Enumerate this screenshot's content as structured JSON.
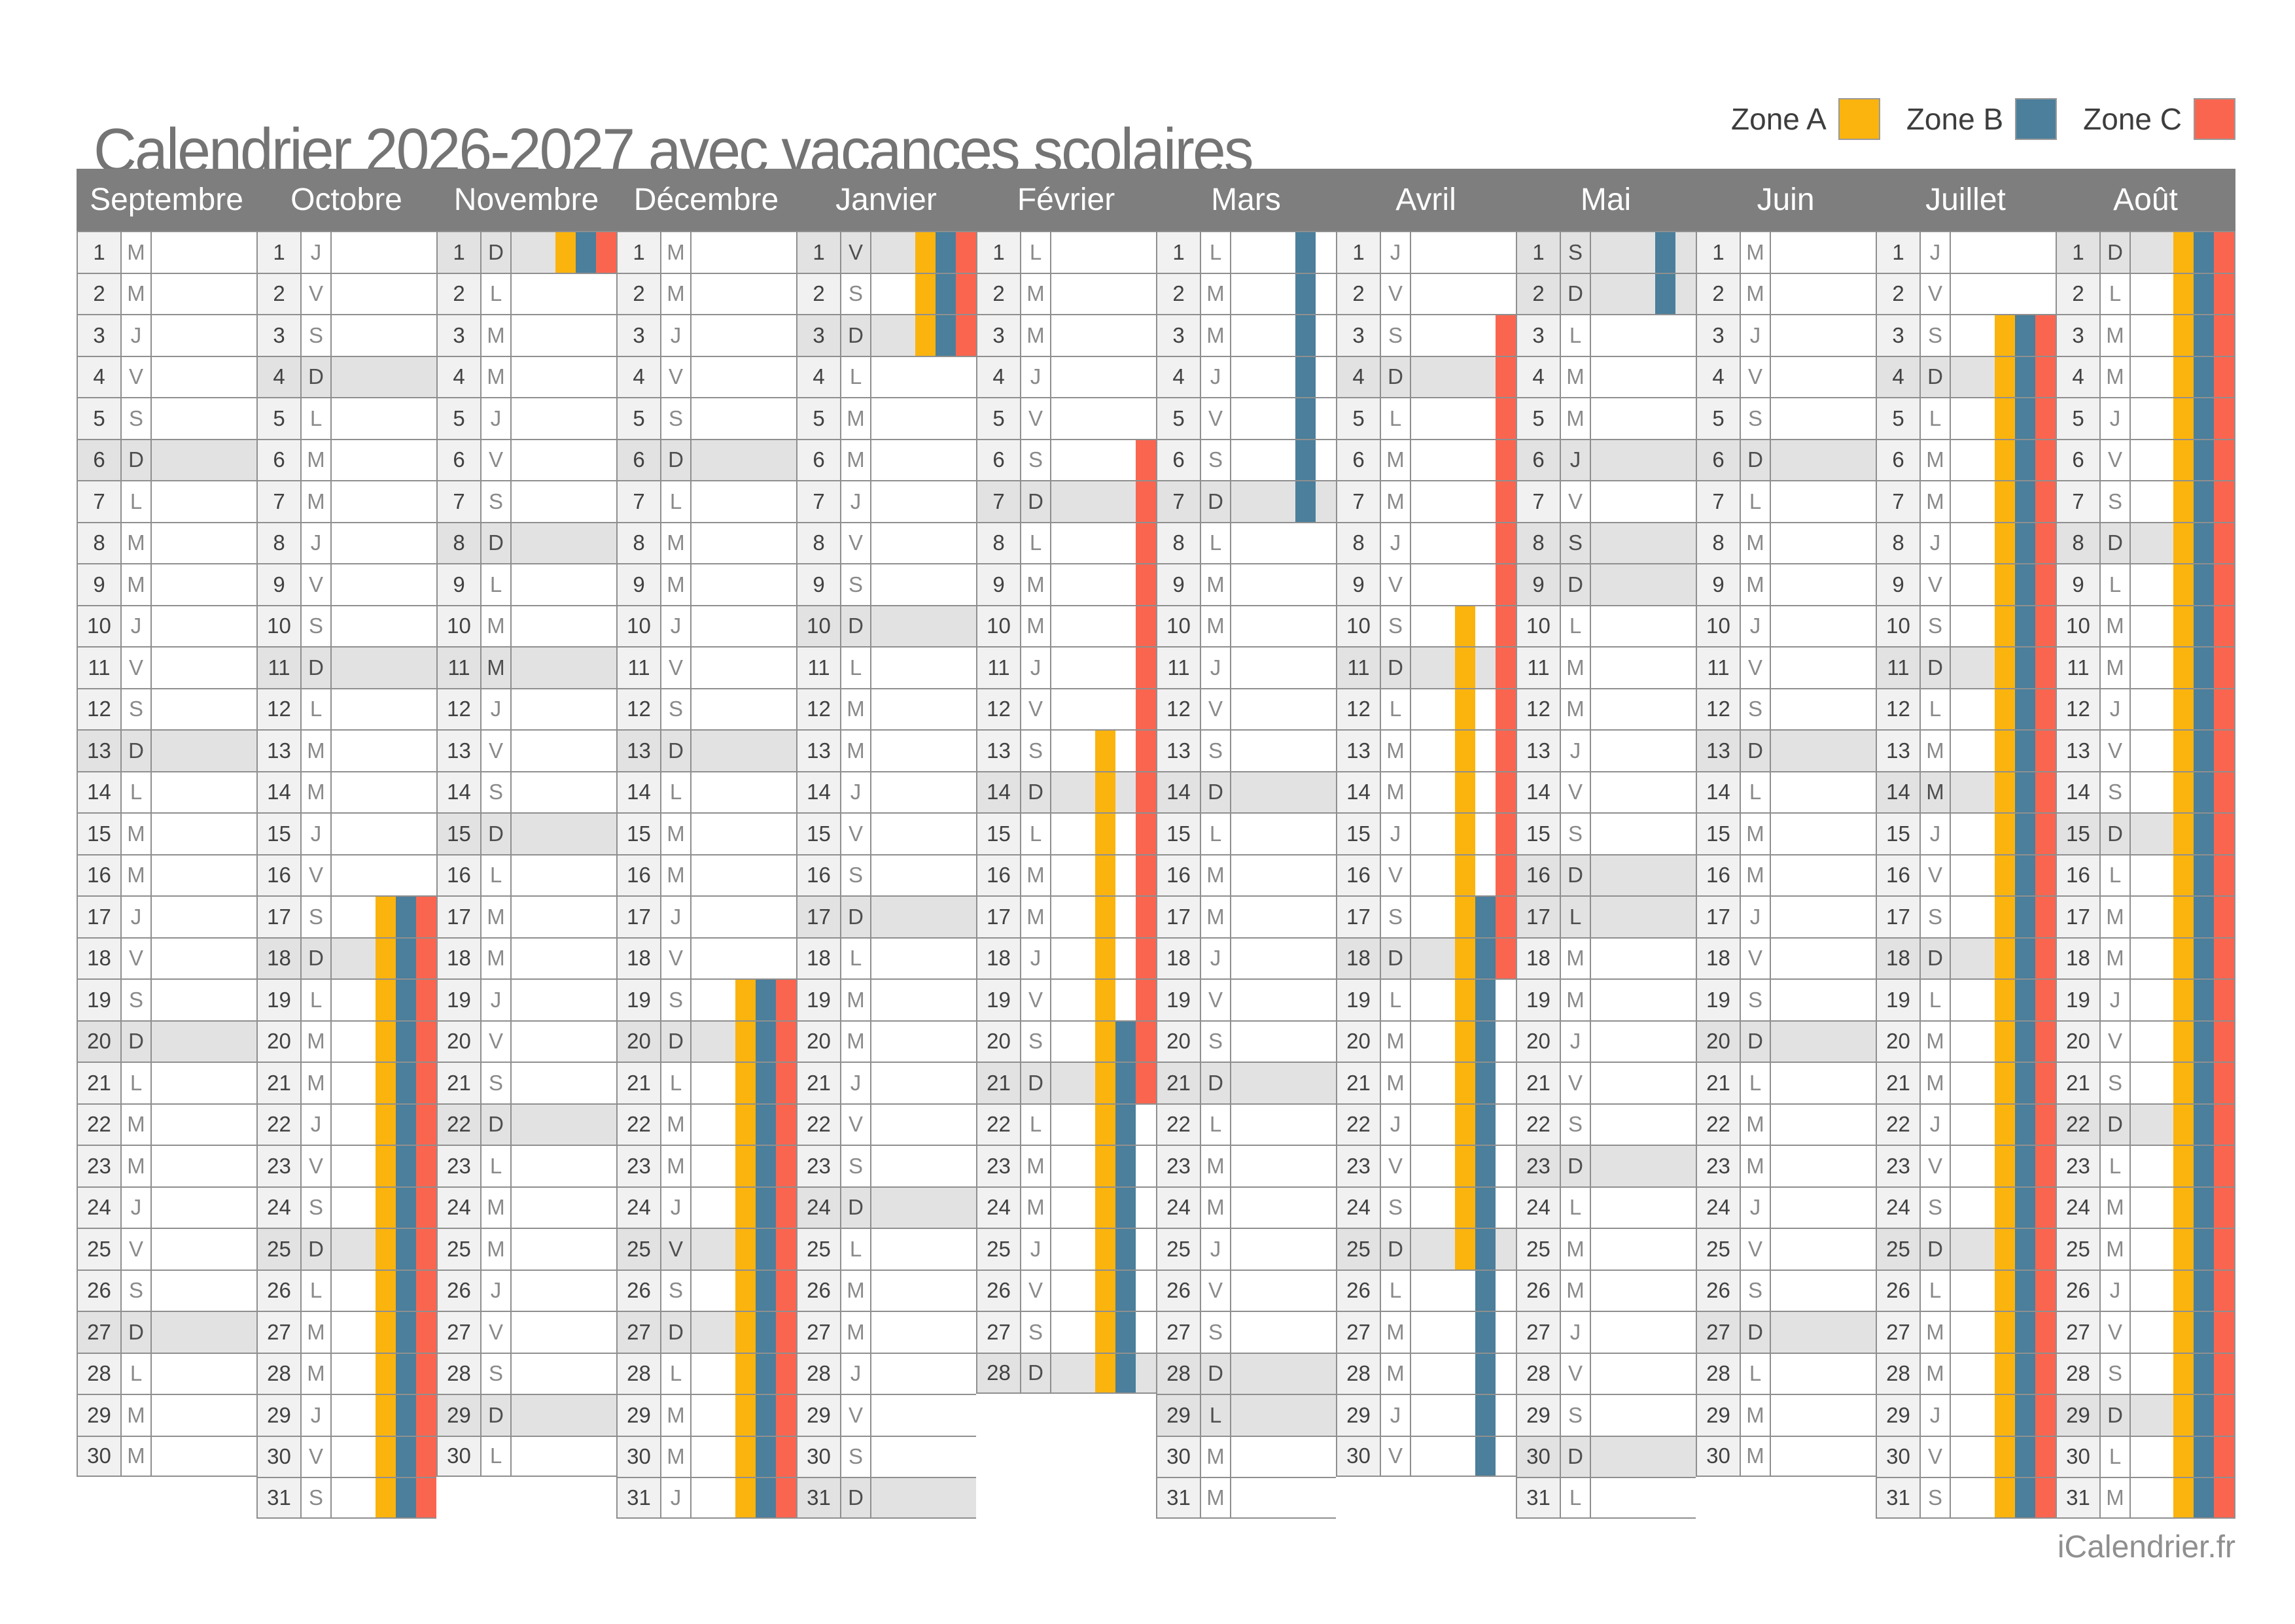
{
  "title": "Calendrier 2026-2027 avec vacances scolaires",
  "footer": "iCalendrier.fr",
  "legend": {
    "items": [
      {
        "id": "A",
        "label": "Zone A",
        "color": "#FBB40D"
      },
      {
        "id": "B",
        "label": "Zone B",
        "color": "#4B7F9B"
      },
      {
        "id": "C",
        "label": "Zone C",
        "color": "#FA6550"
      }
    ]
  },
  "calendar": {
    "months": [
      {
        "name": "Septembre",
        "letters": "MMJVSDLMMJVSDLMMJVSDLMMJVSDLMM",
        "shaded": [
          6,
          13,
          20,
          27
        ],
        "bars": {}
      },
      {
        "name": "Octobre",
        "letters": "JVSDLMMJVSDLMMJVSDLMMJVSDLMMJVS",
        "shaded": [
          4,
          11,
          18,
          25
        ],
        "bars": {
          "A": [
            [
              17,
              31
            ]
          ],
          "B": [
            [
              17,
              31
            ]
          ],
          "C": [
            [
              17,
              31
            ]
          ]
        }
      },
      {
        "name": "Novembre",
        "letters": "DLMMJVSDLMMJVSDLMMJVSDLMMJVSDL",
        "shaded": [
          1,
          8,
          11,
          15,
          22,
          29
        ],
        "bars": {
          "A": [
            [
              1,
              1
            ]
          ],
          "B": [
            [
              1,
              1
            ]
          ],
          "C": [
            [
              1,
              1
            ]
          ]
        }
      },
      {
        "name": "Décembre",
        "letters": "MMJVSDLMMJVSDLMMJVSDLMMJVSDLMMJ",
        "shaded": [
          6,
          13,
          20,
          25,
          27
        ],
        "bars": {
          "A": [
            [
              19,
              31
            ]
          ],
          "B": [
            [
              19,
              31
            ]
          ],
          "C": [
            [
              19,
              31
            ]
          ]
        }
      },
      {
        "name": "Janvier",
        "letters": "VSDLMMJVSDLMMJVSDLMMJVSDLMMJVSD",
        "shaded": [
          1,
          3,
          10,
          17,
          24,
          31
        ],
        "bars": {
          "A": [
            [
              1,
              3
            ]
          ],
          "B": [
            [
              1,
              3
            ]
          ],
          "C": [
            [
              1,
              3
            ]
          ]
        }
      },
      {
        "name": "Février",
        "letters": "LMMJVSDLMMJVSDLMMJVSDLMMJVSD",
        "shaded": [
          7,
          14,
          21,
          28
        ],
        "bars": {
          "A": [
            [
              13,
              28
            ]
          ],
          "B": [
            [
              20,
              28
            ]
          ],
          "C": [
            [
              6,
              21
            ]
          ]
        }
      },
      {
        "name": "Mars",
        "letters": "LMMJVSDLMMJVSDLMMJVSDLMMJVSDLMM",
        "shaded": [
          7,
          14,
          21,
          28,
          29
        ],
        "bars": {
          "B": [
            [
              1,
              7
            ]
          ]
        }
      },
      {
        "name": "Avril",
        "letters": "JVSDLMMJVSDLMMJVSDLMMJVSDLMMJV",
        "shaded": [
          4,
          11,
          18,
          25
        ],
        "bars": {
          "A": [
            [
              10,
              25
            ]
          ],
          "B": [
            [
              17,
              30
            ]
          ],
          "C": [
            [
              3,
              18
            ]
          ]
        }
      },
      {
        "name": "Mai",
        "letters": "SDLMMJVSDLMMJVSDLMMJVSDLMMJVSDL",
        "shaded": [
          1,
          2,
          6,
          8,
          9,
          16,
          17,
          23,
          30
        ],
        "bars": {
          "B": [
            [
              1,
              2
            ]
          ]
        }
      },
      {
        "name": "Juin",
        "letters": "MMJVSDLMMJVSDLMMJVSDLMMJVSDLMM",
        "shaded": [
          6,
          13,
          20,
          27
        ],
        "bars": {}
      },
      {
        "name": "Juillet",
        "letters": "JVSDLMMJVSDLMMJVSDLMMJVSDLMMJVS",
        "shaded": [
          4,
          11,
          14,
          18,
          25
        ],
        "bars": {
          "A": [
            [
              3,
              31
            ]
          ],
          "B": [
            [
              3,
              31
            ]
          ],
          "C": [
            [
              3,
              31
            ]
          ]
        }
      },
      {
        "name": "Août",
        "letters": "DLMMJVSDLMMJVSDLMMJVSDLMMJVSDLM",
        "shaded": [
          1,
          8,
          15,
          22,
          29
        ],
        "bars": {
          "A": [
            [
              1,
              31
            ]
          ],
          "B": [
            [
              1,
              31
            ]
          ],
          "C": [
            [
              1,
              31
            ]
          ]
        }
      }
    ]
  }
}
